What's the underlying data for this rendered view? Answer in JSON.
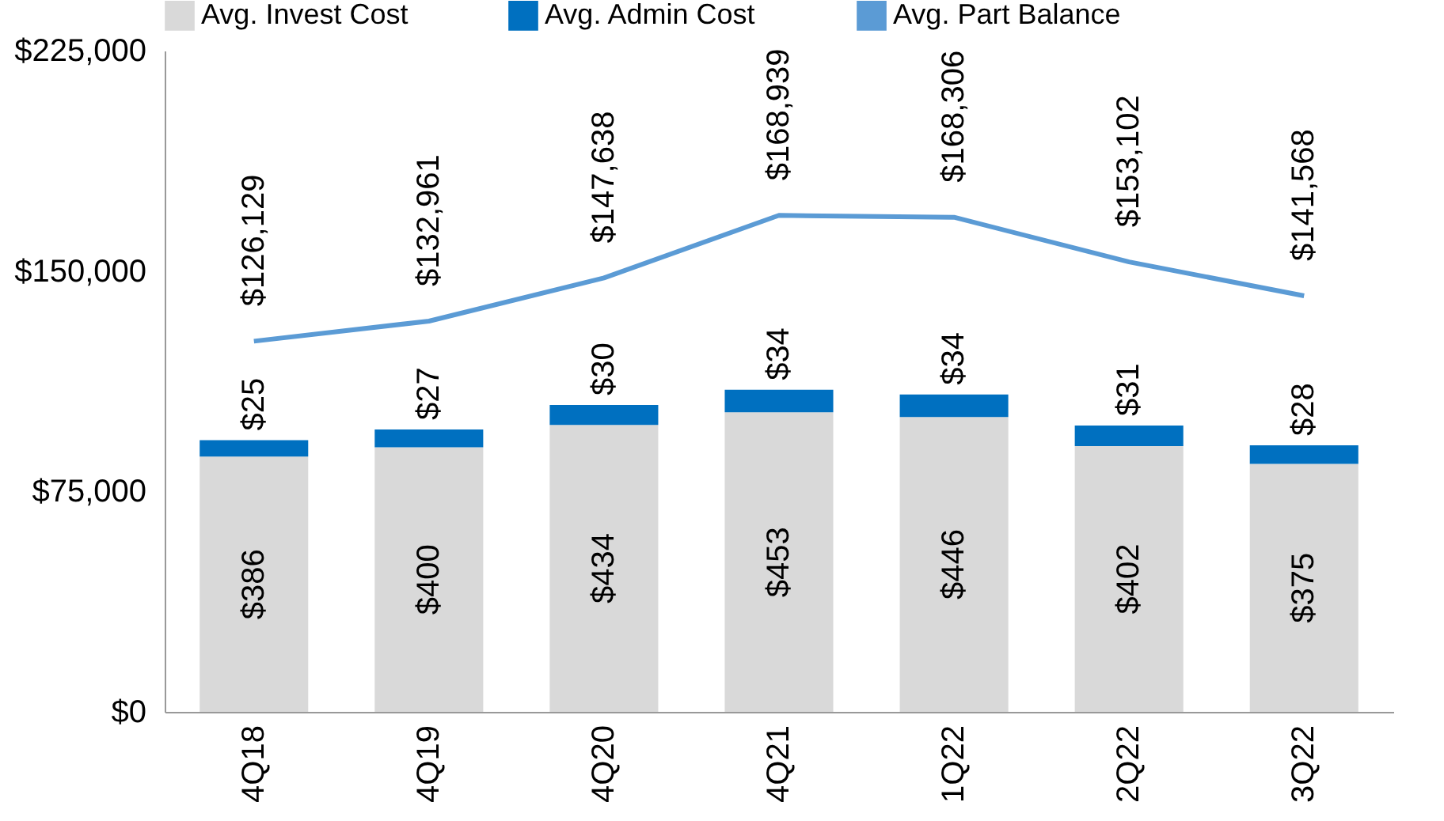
{
  "chart_data": {
    "type": "bar",
    "stacked": true,
    "categories": [
      "4Q18",
      "4Q19",
      "4Q20",
      "4Q21",
      "1Q22",
      "2Q22",
      "3Q22"
    ],
    "series": [
      {
        "name": "Avg. Invest Cost",
        "color": "#d9d9d9",
        "axis": "y2",
        "values": [
          386,
          400,
          434,
          453,
          446,
          402,
          375
        ],
        "value_labels": [
          "$386",
          "$400",
          "$434",
          "$453",
          "$446",
          "$402",
          "$375"
        ]
      },
      {
        "name": "Avg. Admin Cost",
        "color": "#0070c0",
        "axis": "y2",
        "values": [
          25,
          27,
          30,
          34,
          34,
          31,
          28
        ],
        "value_labels": [
          "$25",
          "$27",
          "$30",
          "$34",
          "$34",
          "$31",
          "$28"
        ]
      },
      {
        "name": "Avg. Part Balance",
        "type": "line",
        "color": "#5b9bd5",
        "values": [
          126129,
          132961,
          147638,
          168939,
          168306,
          153102,
          141568
        ],
        "value_labels": [
          "$126,129",
          "$132,961",
          "$147,638",
          "$168,939",
          "$168,306",
          "$153,102",
          "$141,568"
        ]
      }
    ],
    "ylim": [
      0,
      225000
    ],
    "yticks": [
      {
        "value": 0,
        "label": "$0"
      },
      {
        "value": 75000,
        "label": "$75,000"
      },
      {
        "value": 150000,
        "label": "$150,000"
      },
      {
        "value": 225000,
        "label": "$225,000"
      }
    ],
    "y2lim": [
      0,
      1000
    ],
    "grid": false,
    "legend": "top"
  }
}
